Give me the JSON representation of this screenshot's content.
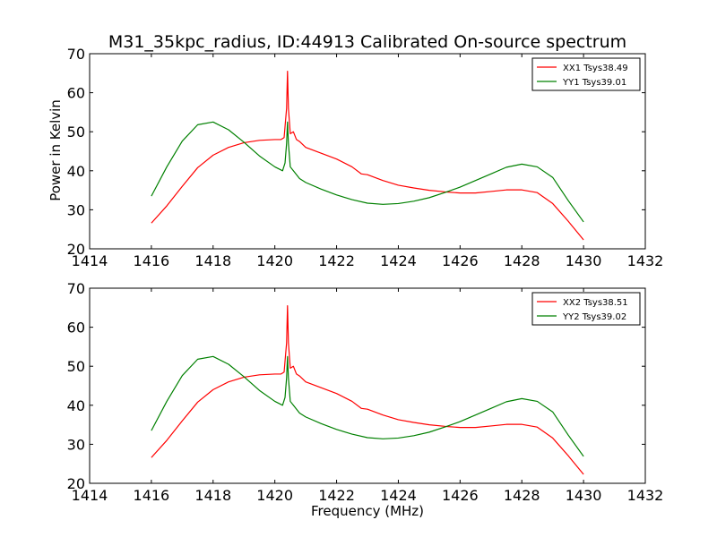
{
  "figure": {
    "title": "M31_35kpc_radius, ID:44913 Calibrated On-source spectrum",
    "xlabel": "Frequency (MHz)",
    "ylabel": "Power in Kelvin"
  },
  "chart_data": [
    {
      "type": "line",
      "xlim": [
        1414,
        1432
      ],
      "ylim": [
        20,
        70
      ],
      "xticks": [
        1414,
        1416,
        1418,
        1420,
        1422,
        1424,
        1426,
        1428,
        1430,
        1432
      ],
      "yticks": [
        20,
        30,
        40,
        50,
        60,
        70
      ],
      "grid": false,
      "legend_position": "top-right",
      "series": [
        {
          "name": "XX1 Tsys38.49",
          "color": "#ff0000",
          "points": [
            [
              1416.0,
              26.6
            ],
            [
              1416.5,
              31.0
            ],
            [
              1417.0,
              36.0
            ],
            [
              1417.5,
              40.8
            ],
            [
              1418.0,
              44.0
            ],
            [
              1418.5,
              46.0
            ],
            [
              1419.0,
              47.2
            ],
            [
              1419.5,
              47.8
            ],
            [
              1420.0,
              48.0
            ],
            [
              1420.2,
              48.0
            ],
            [
              1420.3,
              48.5
            ],
            [
              1420.38,
              56.0
            ],
            [
              1420.41,
              65.5
            ],
            [
              1420.44,
              56.0
            ],
            [
              1420.5,
              49.5
            ],
            [
              1420.6,
              50.0
            ],
            [
              1420.7,
              48.0
            ],
            [
              1420.8,
              47.5
            ],
            [
              1421.0,
              46.0
            ],
            [
              1421.5,
              44.5
            ],
            [
              1422.0,
              43.0
            ],
            [
              1422.5,
              41.0
            ],
            [
              1422.8,
              39.2
            ],
            [
              1423.0,
              39.0
            ],
            [
              1423.5,
              37.5
            ],
            [
              1424.0,
              36.3
            ],
            [
              1424.5,
              35.6
            ],
            [
              1425.0,
              35.0
            ],
            [
              1425.5,
              34.6
            ],
            [
              1426.0,
              34.3
            ],
            [
              1426.5,
              34.3
            ],
            [
              1427.0,
              34.7
            ],
            [
              1427.5,
              35.1
            ],
            [
              1428.0,
              35.1
            ],
            [
              1428.5,
              34.4
            ],
            [
              1429.0,
              31.6
            ],
            [
              1429.5,
              27.1
            ],
            [
              1430.0,
              22.3
            ]
          ]
        },
        {
          "name": "YY1 Tsys39.01",
          "color": "#008000",
          "points": [
            [
              1416.0,
              33.5
            ],
            [
              1416.5,
              41.0
            ],
            [
              1417.0,
              47.6
            ],
            [
              1417.5,
              51.8
            ],
            [
              1418.0,
              52.5
            ],
            [
              1418.5,
              50.5
            ],
            [
              1419.0,
              47.3
            ],
            [
              1419.5,
              43.8
            ],
            [
              1420.0,
              41.0
            ],
            [
              1420.25,
              40.0
            ],
            [
              1420.33,
              42.0
            ],
            [
              1420.38,
              47.0
            ],
            [
              1420.41,
              52.5
            ],
            [
              1420.44,
              47.0
            ],
            [
              1420.5,
              41.0
            ],
            [
              1420.6,
              40.0
            ],
            [
              1420.8,
              38.0
            ],
            [
              1421.0,
              37.0
            ],
            [
              1421.5,
              35.3
            ],
            [
              1422.0,
              33.8
            ],
            [
              1422.5,
              32.6
            ],
            [
              1423.0,
              31.7
            ],
            [
              1423.5,
              31.4
            ],
            [
              1424.0,
              31.6
            ],
            [
              1424.5,
              32.2
            ],
            [
              1425.0,
              33.1
            ],
            [
              1425.5,
              34.4
            ],
            [
              1426.0,
              35.8
            ],
            [
              1426.5,
              37.5
            ],
            [
              1427.0,
              39.2
            ],
            [
              1427.5,
              40.9
            ],
            [
              1428.0,
              41.7
            ],
            [
              1428.5,
              41.0
            ],
            [
              1429.0,
              38.3
            ],
            [
              1429.5,
              32.4
            ],
            [
              1430.0,
              26.9
            ]
          ]
        }
      ]
    },
    {
      "type": "line",
      "xlim": [
        1414,
        1432
      ],
      "ylim": [
        20,
        70
      ],
      "xticks": [
        1414,
        1416,
        1418,
        1420,
        1422,
        1424,
        1426,
        1428,
        1430,
        1432
      ],
      "yticks": [
        20,
        30,
        40,
        50,
        60,
        70
      ],
      "grid": false,
      "legend_position": "top-right",
      "series": [
        {
          "name": "XX2 Tsys38.51",
          "color": "#ff0000",
          "points": [
            [
              1416.0,
              26.6
            ],
            [
              1416.5,
              31.0
            ],
            [
              1417.0,
              36.0
            ],
            [
              1417.5,
              40.8
            ],
            [
              1418.0,
              44.0
            ],
            [
              1418.5,
              46.0
            ],
            [
              1419.0,
              47.2
            ],
            [
              1419.5,
              47.8
            ],
            [
              1420.0,
              48.0
            ],
            [
              1420.2,
              48.0
            ],
            [
              1420.3,
              48.5
            ],
            [
              1420.38,
              56.0
            ],
            [
              1420.41,
              65.5
            ],
            [
              1420.44,
              56.0
            ],
            [
              1420.5,
              49.5
            ],
            [
              1420.6,
              50.0
            ],
            [
              1420.7,
              48.0
            ],
            [
              1420.8,
              47.5
            ],
            [
              1421.0,
              46.0
            ],
            [
              1421.5,
              44.5
            ],
            [
              1422.0,
              43.0
            ],
            [
              1422.5,
              41.0
            ],
            [
              1422.8,
              39.2
            ],
            [
              1423.0,
              39.0
            ],
            [
              1423.5,
              37.5
            ],
            [
              1424.0,
              36.3
            ],
            [
              1424.5,
              35.6
            ],
            [
              1425.0,
              35.0
            ],
            [
              1425.5,
              34.6
            ],
            [
              1426.0,
              34.3
            ],
            [
              1426.5,
              34.3
            ],
            [
              1427.0,
              34.7
            ],
            [
              1427.5,
              35.1
            ],
            [
              1428.0,
              35.1
            ],
            [
              1428.5,
              34.4
            ],
            [
              1429.0,
              31.6
            ],
            [
              1429.5,
              27.1
            ],
            [
              1430.0,
              22.3
            ]
          ]
        },
        {
          "name": "YY2 Tsys39.02",
          "color": "#008000",
          "points": [
            [
              1416.0,
              33.5
            ],
            [
              1416.5,
              41.0
            ],
            [
              1417.0,
              47.6
            ],
            [
              1417.5,
              51.8
            ],
            [
              1418.0,
              52.5
            ],
            [
              1418.5,
              50.5
            ],
            [
              1419.0,
              47.3
            ],
            [
              1419.5,
              43.8
            ],
            [
              1420.0,
              41.0
            ],
            [
              1420.25,
              40.0
            ],
            [
              1420.33,
              42.0
            ],
            [
              1420.38,
              47.0
            ],
            [
              1420.41,
              52.5
            ],
            [
              1420.44,
              47.0
            ],
            [
              1420.5,
              41.0
            ],
            [
              1420.6,
              40.0
            ],
            [
              1420.8,
              38.0
            ],
            [
              1421.0,
              37.0
            ],
            [
              1421.5,
              35.3
            ],
            [
              1422.0,
              33.8
            ],
            [
              1422.5,
              32.6
            ],
            [
              1423.0,
              31.7
            ],
            [
              1423.5,
              31.4
            ],
            [
              1424.0,
              31.6
            ],
            [
              1424.5,
              32.2
            ],
            [
              1425.0,
              33.1
            ],
            [
              1425.5,
              34.4
            ],
            [
              1426.0,
              35.8
            ],
            [
              1426.5,
              37.5
            ],
            [
              1427.0,
              39.2
            ],
            [
              1427.5,
              40.9
            ],
            [
              1428.0,
              41.7
            ],
            [
              1428.5,
              41.0
            ],
            [
              1429.0,
              38.3
            ],
            [
              1429.5,
              32.4
            ],
            [
              1430.0,
              26.9
            ]
          ]
        }
      ]
    }
  ]
}
